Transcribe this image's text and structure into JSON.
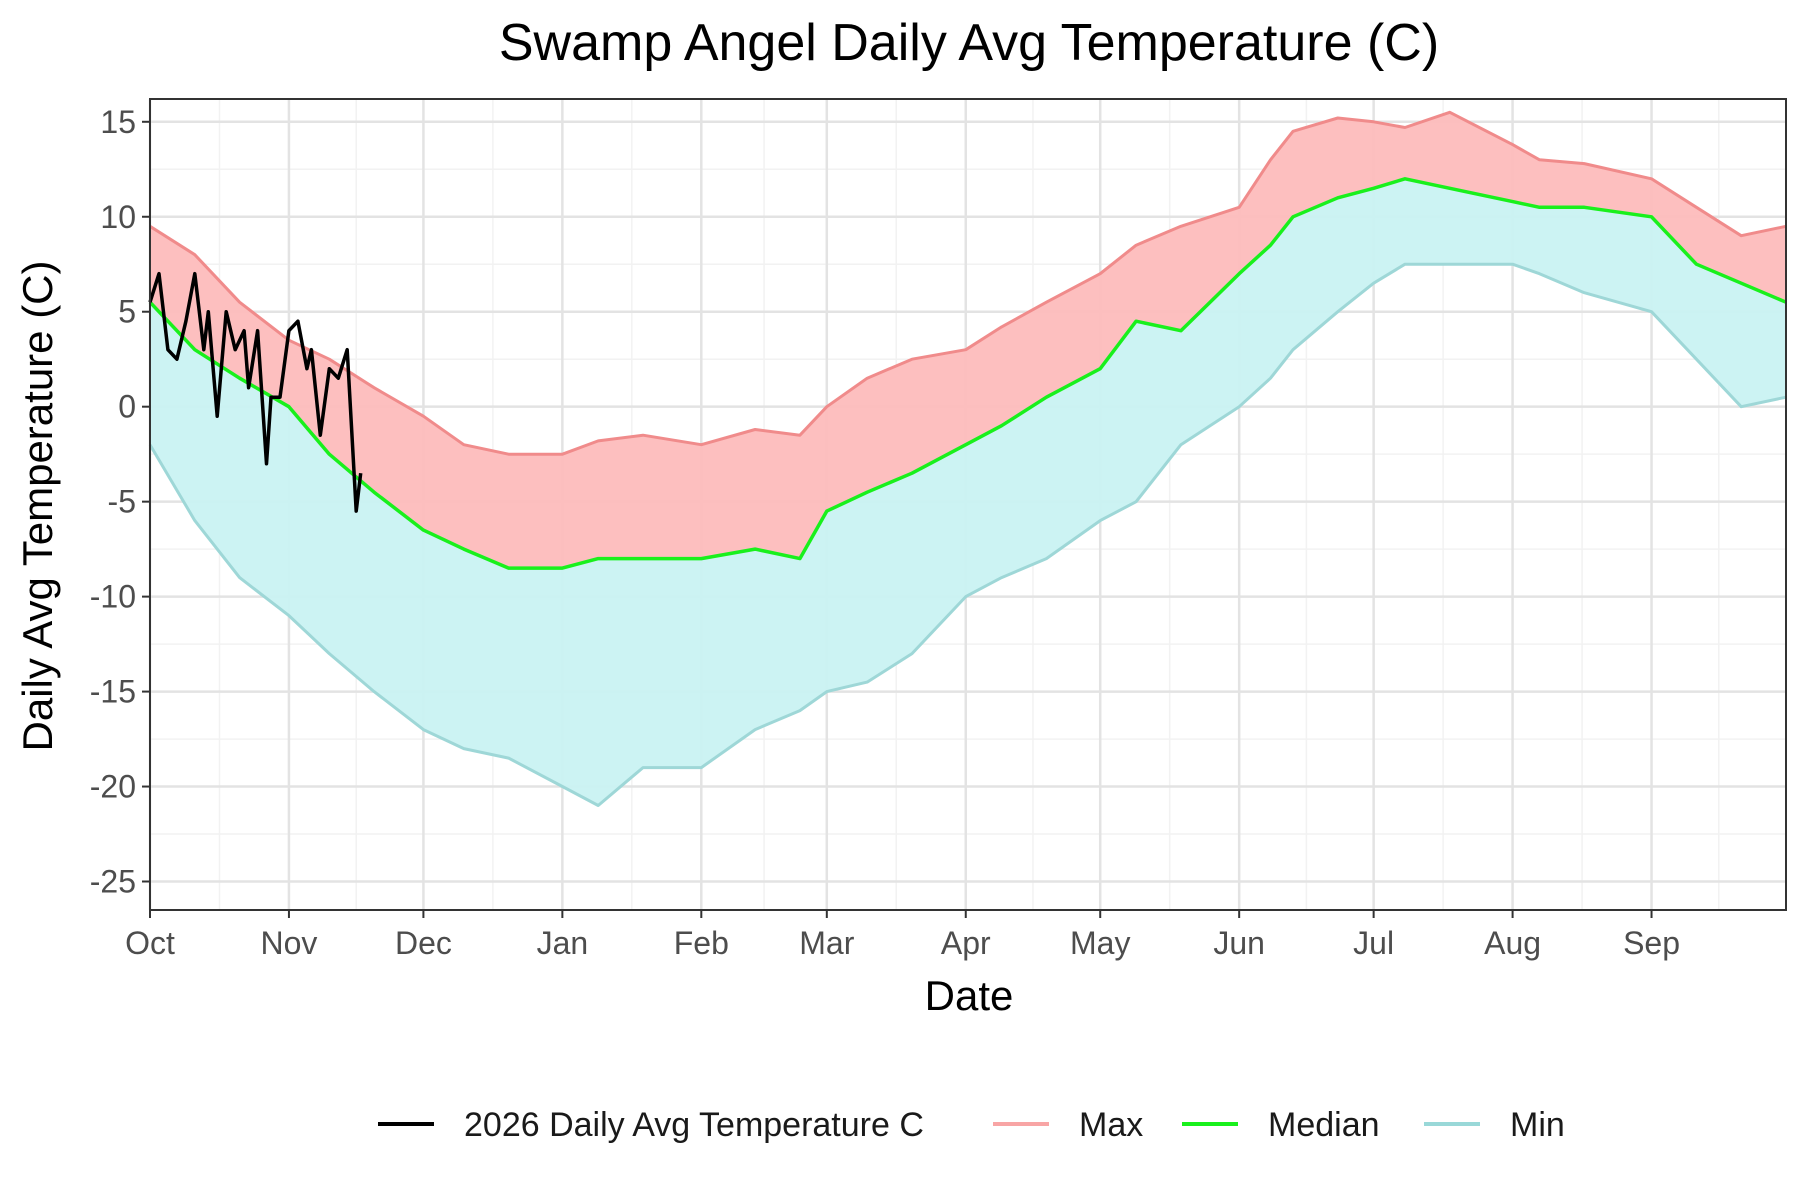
{
  "chart_data": {
    "type": "line",
    "title": "Swamp Angel Daily Avg Temperature (C)",
    "xlabel": "Date",
    "ylabel": "Daily Avg Temperature (C)",
    "ylim": [
      -26.5,
      16.2
    ],
    "y_ticks": [
      15,
      10,
      5,
      0,
      -5,
      -10,
      -15,
      -20,
      -25
    ],
    "y_tick_labels": [
      "15",
      "10",
      "5",
      "0",
      "-5",
      "-10",
      "-15",
      "-20",
      "-25"
    ],
    "x_tick_labels": [
      "Oct",
      "Nov",
      "Dec",
      "Jan",
      "Feb",
      "Mar",
      "Apr",
      "May",
      "Jun",
      "Jul",
      "Aug",
      "Sep"
    ],
    "x_unit": "day of water year (day 0 = Oct 1)",
    "x_tick_positions": [
      0,
      31,
      61,
      92,
      123,
      151,
      182,
      212,
      243,
      273,
      304,
      335
    ],
    "x_range": [
      0,
      365
    ],
    "grid": true,
    "legend_position": "bottom",
    "legend": [
      {
        "label": "2026 Daily Avg Temperature C",
        "color": "#000000"
      },
      {
        "label": "Max",
        "color": "#f8a5a5"
      },
      {
        "label": "Median",
        "color": "#19f01c"
      },
      {
        "label": "Min",
        "color": "#99d8d8"
      }
    ],
    "series": [
      {
        "name": "Max",
        "color": "#f08b8b",
        "band_fill": "#fdbcbc",
        "x": [
          0,
          10,
          20,
          31,
          40,
          50,
          61,
          70,
          80,
          92,
          100,
          110,
          123,
          135,
          145,
          151,
          160,
          170,
          182,
          190,
          200,
          212,
          220,
          230,
          243,
          250,
          255,
          265,
          273,
          280,
          290,
          304,
          310,
          320,
          335,
          345,
          355,
          365
        ],
        "values": [
          9.5,
          8.0,
          5.5,
          3.5,
          2.5,
          1.0,
          -0.5,
          -2.0,
          -2.5,
          -2.5,
          -1.8,
          -1.5,
          -2.0,
          -1.2,
          -1.5,
          0.0,
          1.5,
          2.5,
          3.0,
          4.2,
          5.5,
          7.0,
          8.5,
          9.5,
          10.5,
          13.0,
          14.5,
          15.2,
          15.0,
          14.7,
          15.5,
          13.8,
          13.0,
          12.8,
          12.0,
          10.5,
          9.0,
          9.5
        ]
      },
      {
        "name": "Median",
        "color": "#19f01c",
        "x": [
          0,
          10,
          20,
          31,
          40,
          50,
          61,
          70,
          80,
          92,
          100,
          110,
          123,
          135,
          145,
          151,
          160,
          170,
          182,
          190,
          200,
          212,
          220,
          230,
          243,
          250,
          255,
          265,
          273,
          280,
          290,
          304,
          310,
          320,
          335,
          345,
          355,
          365
        ],
        "values": [
          5.5,
          3.0,
          1.5,
          0.0,
          -2.5,
          -4.5,
          -6.5,
          -7.5,
          -8.5,
          -8.5,
          -8.0,
          -8.0,
          -8.0,
          -7.5,
          -8.0,
          -5.5,
          -4.5,
          -3.5,
          -2.0,
          -1.0,
          0.5,
          2.0,
          4.5,
          4.0,
          7.0,
          8.5,
          10.0,
          11.0,
          11.5,
          12.0,
          11.5,
          10.8,
          10.5,
          10.5,
          10.0,
          7.5,
          6.5,
          5.5
        ]
      },
      {
        "name": "Min",
        "color": "#9ed7d7",
        "band_fill": "#c9f2f2",
        "x": [
          0,
          10,
          20,
          31,
          40,
          50,
          61,
          70,
          80,
          92,
          100,
          110,
          123,
          135,
          145,
          151,
          160,
          170,
          182,
          190,
          200,
          212,
          220,
          230,
          243,
          250,
          255,
          265,
          273,
          280,
          290,
          304,
          310,
          320,
          335,
          345,
          355,
          365
        ],
        "values": [
          -2.0,
          -6.0,
          -9.0,
          -11.0,
          -13.0,
          -15.0,
          -17.0,
          -18.0,
          -18.5,
          -20.0,
          -21.0,
          -19.0,
          -19.0,
          -17.0,
          -16.0,
          -15.0,
          -14.5,
          -13.0,
          -10.0,
          -9.0,
          -8.0,
          -6.0,
          -5.0,
          -2.0,
          0.0,
          1.5,
          3.0,
          5.0,
          6.5,
          7.5,
          7.5,
          7.5,
          7.0,
          6.0,
          5.0,
          2.5,
          0.0,
          0.5
        ]
      },
      {
        "name": "2026 Daily Avg Temperature C",
        "color": "#000000",
        "x": [
          0,
          2,
          4,
          6,
          8,
          10,
          12,
          13,
          15,
          17,
          19,
          21,
          22,
          24,
          26,
          27,
          29,
          31,
          33,
          35,
          36,
          38,
          40,
          42,
          44,
          46,
          47
        ],
        "values": [
          5.5,
          7.0,
          3.0,
          2.5,
          4.5,
          7.0,
          3.0,
          5.0,
          -0.5,
          5.0,
          3.0,
          4.0,
          1.0,
          4.0,
          -3.0,
          0.5,
          0.5,
          4.0,
          4.5,
          2.0,
          3.0,
          -1.5,
          2.0,
          1.5,
          3.0,
          -5.5,
          -3.5
        ]
      }
    ]
  }
}
